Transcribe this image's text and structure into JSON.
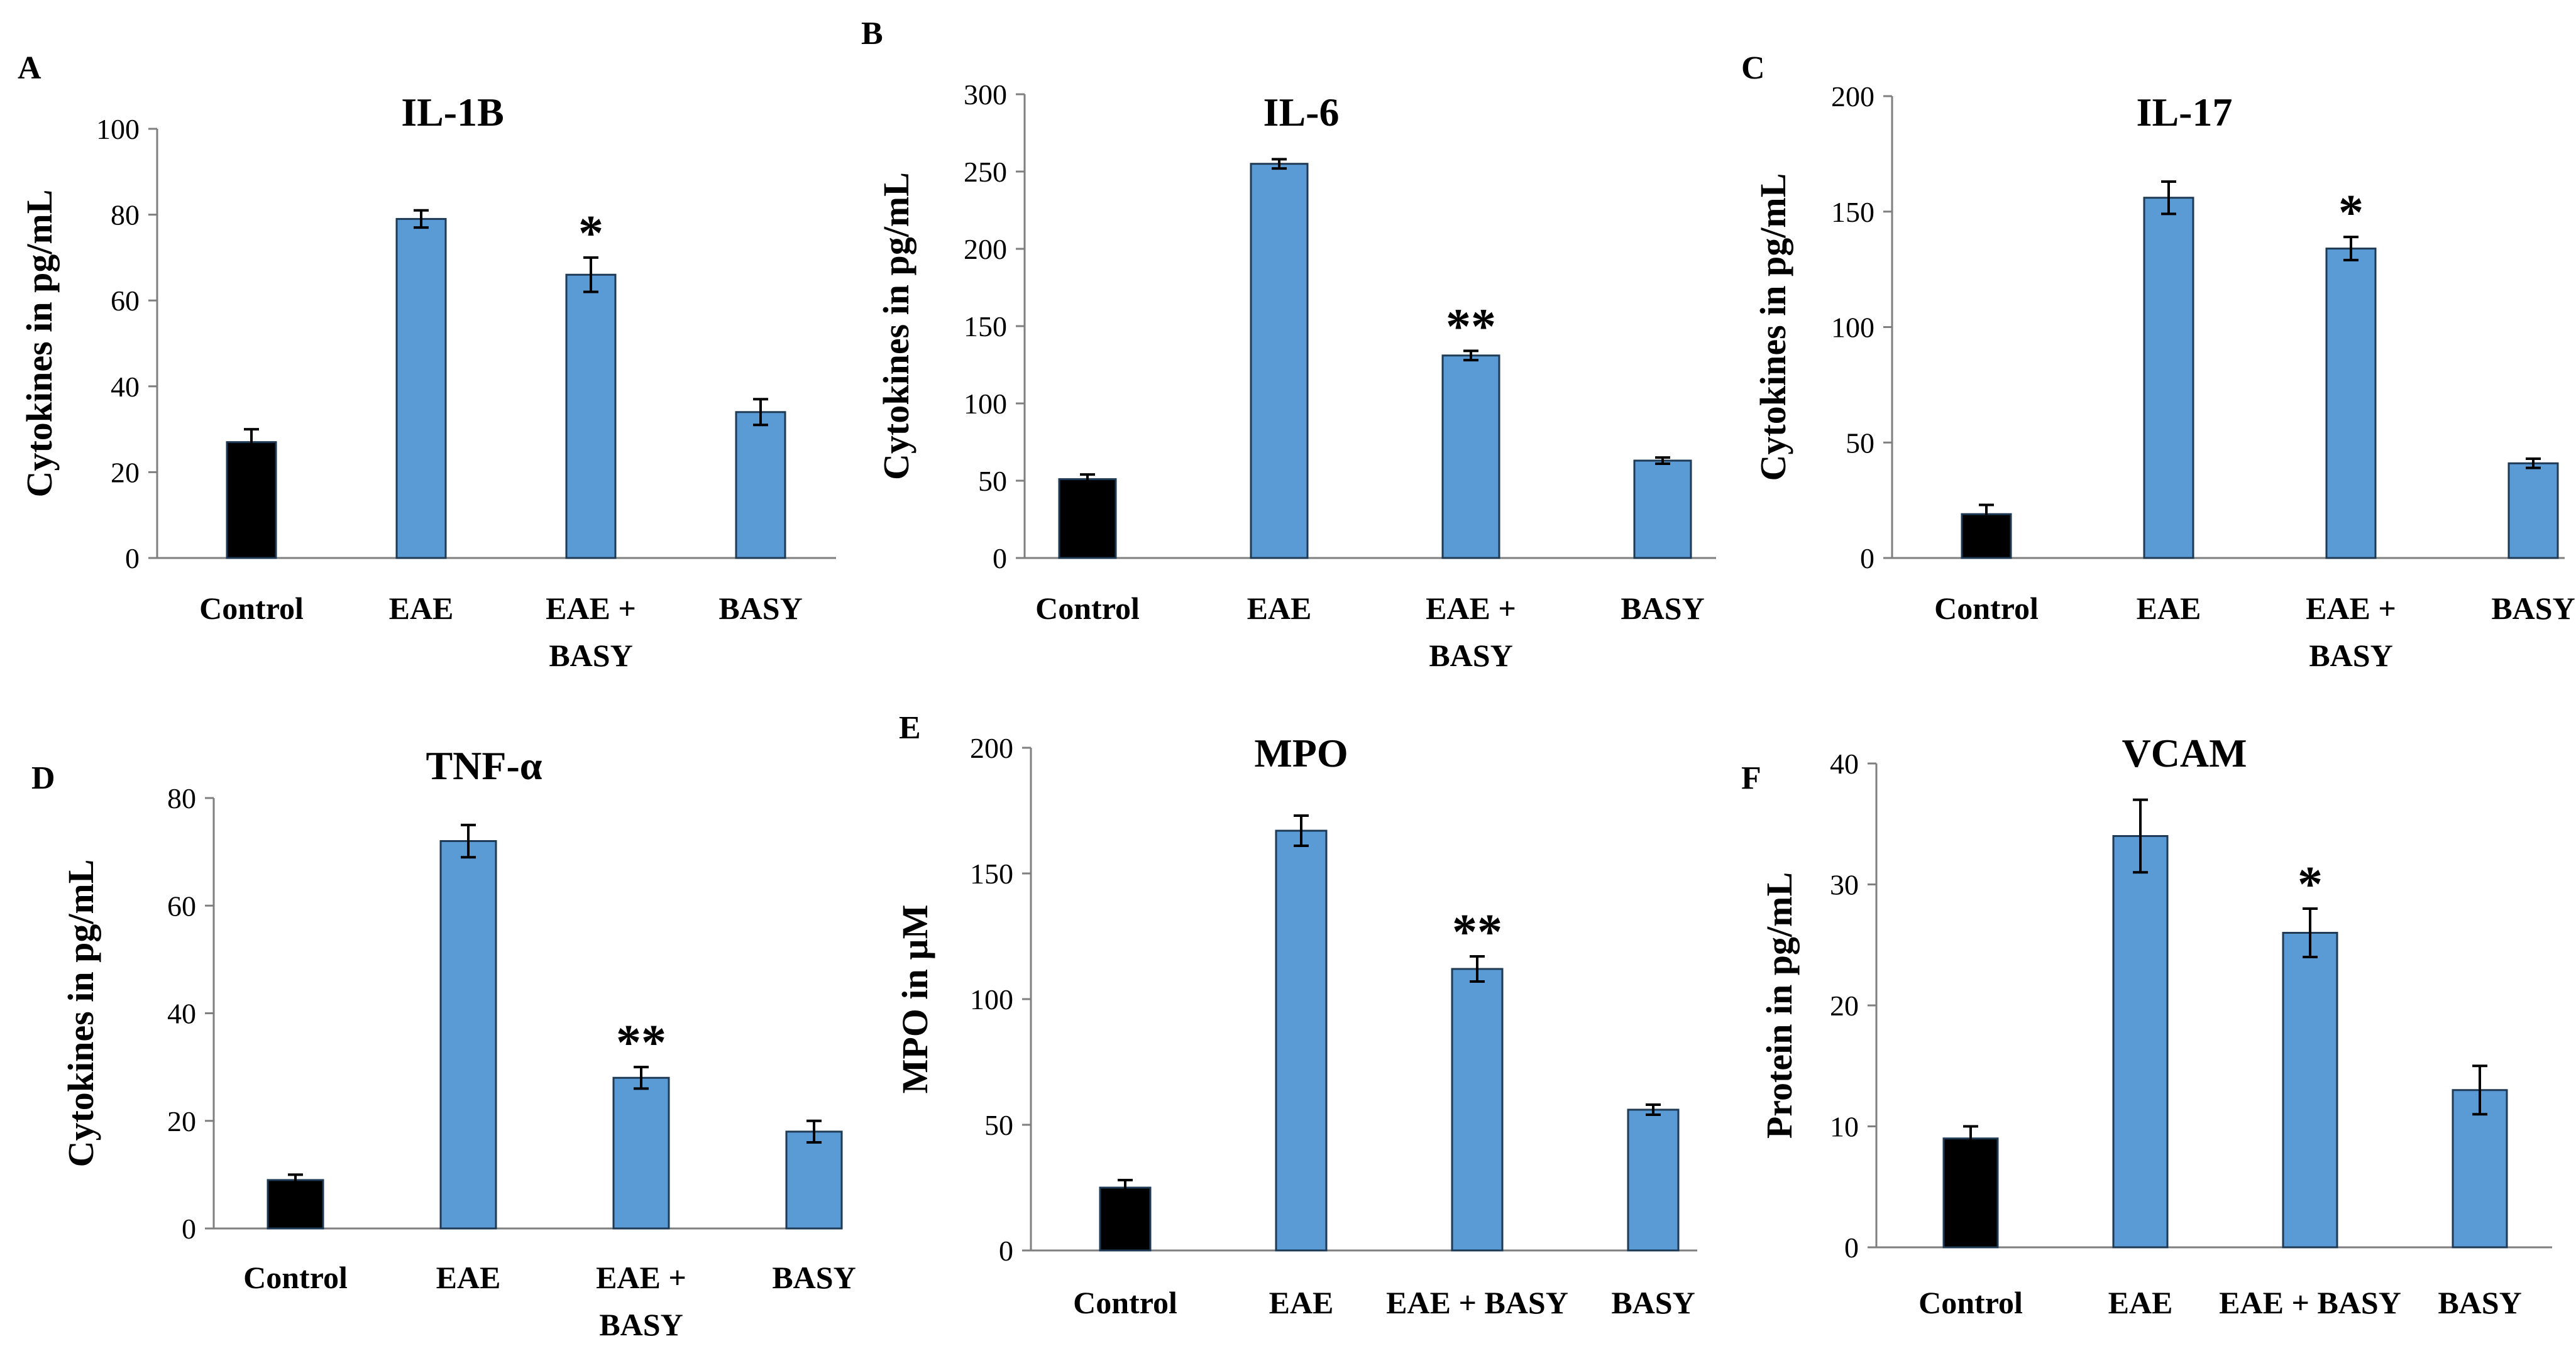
{
  "chart_data": [
    {
      "panel": "A",
      "type": "bar",
      "title": "IL-1B",
      "ylabel": "Cytokines in pg/mL",
      "ylim": [
        0,
        100
      ],
      "yticks": [
        0,
        20,
        40,
        60,
        80,
        100
      ],
      "categories": [
        [
          "Control"
        ],
        [
          "EAE"
        ],
        [
          "EAE +",
          "BASY"
        ],
        [
          "BASY"
        ]
      ],
      "values": [
        27,
        79,
        66,
        34
      ],
      "errors": [
        3,
        2,
        4,
        3
      ],
      "significance": [
        "",
        "",
        "*",
        ""
      ],
      "bar_colors": [
        "#000000",
        "#5b9bd5",
        "#5b9bd5",
        "#5b9bd5"
      ]
    },
    {
      "panel": "B",
      "type": "bar",
      "title": "IL-6",
      "ylabel": "Cytokines in pg/mL",
      "ylim": [
        0,
        300
      ],
      "yticks": [
        0,
        50,
        100,
        150,
        200,
        250,
        300
      ],
      "categories": [
        [
          "Control"
        ],
        [
          "EAE"
        ],
        [
          "EAE +",
          "BASY"
        ],
        [
          "BASY"
        ]
      ],
      "values": [
        51,
        255,
        131,
        63
      ],
      "errors": [
        3,
        3,
        3,
        2
      ],
      "significance": [
        "",
        "",
        "**",
        ""
      ],
      "bar_colors": [
        "#000000",
        "#5b9bd5",
        "#5b9bd5",
        "#5b9bd5"
      ]
    },
    {
      "panel": "C",
      "type": "bar",
      "title": "IL-17",
      "ylabel": "Cytokines in pg/mL",
      "ylim": [
        0,
        200
      ],
      "yticks": [
        0,
        50,
        100,
        150,
        200
      ],
      "categories": [
        [
          "Control"
        ],
        [
          "EAE"
        ],
        [
          "EAE +",
          "BASY"
        ],
        [
          "BASY"
        ]
      ],
      "values": [
        19,
        156,
        134,
        41
      ],
      "errors": [
        4,
        7,
        5,
        2
      ],
      "significance": [
        "",
        "",
        "*",
        ""
      ],
      "bar_colors": [
        "#000000",
        "#5b9bd5",
        "#5b9bd5",
        "#5b9bd5"
      ]
    },
    {
      "panel": "D",
      "type": "bar",
      "title": "TNF-α",
      "ylabel": "Cytokines in pg/mL",
      "ylim": [
        0,
        80
      ],
      "yticks": [
        0,
        20,
        40,
        60,
        80
      ],
      "categories": [
        [
          "Control"
        ],
        [
          "EAE"
        ],
        [
          "EAE +",
          "BASY"
        ],
        [
          "BASY"
        ]
      ],
      "values": [
        9,
        72,
        28,
        18
      ],
      "errors": [
        1,
        3,
        2,
        2
      ],
      "significance": [
        "",
        "",
        "**",
        ""
      ],
      "bar_colors": [
        "#000000",
        "#5b9bd5",
        "#5b9bd5",
        "#5b9bd5"
      ]
    },
    {
      "panel": "E",
      "type": "bar",
      "title": "MPO",
      "ylabel": "MPO in µM",
      "ylim": [
        0,
        200
      ],
      "yticks": [
        0,
        50,
        100,
        150,
        200
      ],
      "categories": [
        [
          "Control"
        ],
        [
          "EAE"
        ],
        [
          "EAE + BASY"
        ],
        [
          "BASY"
        ]
      ],
      "values": [
        25,
        167,
        112,
        56
      ],
      "errors": [
        3,
        6,
        5,
        2
      ],
      "significance": [
        "",
        "",
        "**",
        ""
      ],
      "bar_colors": [
        "#000000",
        "#5b9bd5",
        "#5b9bd5",
        "#5b9bd5"
      ]
    },
    {
      "panel": "F",
      "type": "bar",
      "title": "VCAM",
      "ylabel": "Protein in pg/mL",
      "ylim": [
        0,
        40
      ],
      "yticks": [
        0,
        10,
        20,
        30,
        40
      ],
      "categories": [
        [
          "Control"
        ],
        [
          "EAE"
        ],
        [
          "EAE + BASY"
        ],
        [
          "BASY"
        ]
      ],
      "values": [
        9,
        34,
        26,
        13
      ],
      "errors": [
        1,
        3,
        2,
        2
      ],
      "significance": [
        "",
        "",
        "*",
        ""
      ],
      "bar_colors": [
        "#000000",
        "#5b9bd5",
        "#5b9bd5",
        "#5b9bd5"
      ]
    }
  ],
  "colors": {
    "control_bar": "#000000",
    "treatment_bar": "#5b9bd5",
    "axis": "#7f7f7f",
    "error_bar": "#000000"
  }
}
